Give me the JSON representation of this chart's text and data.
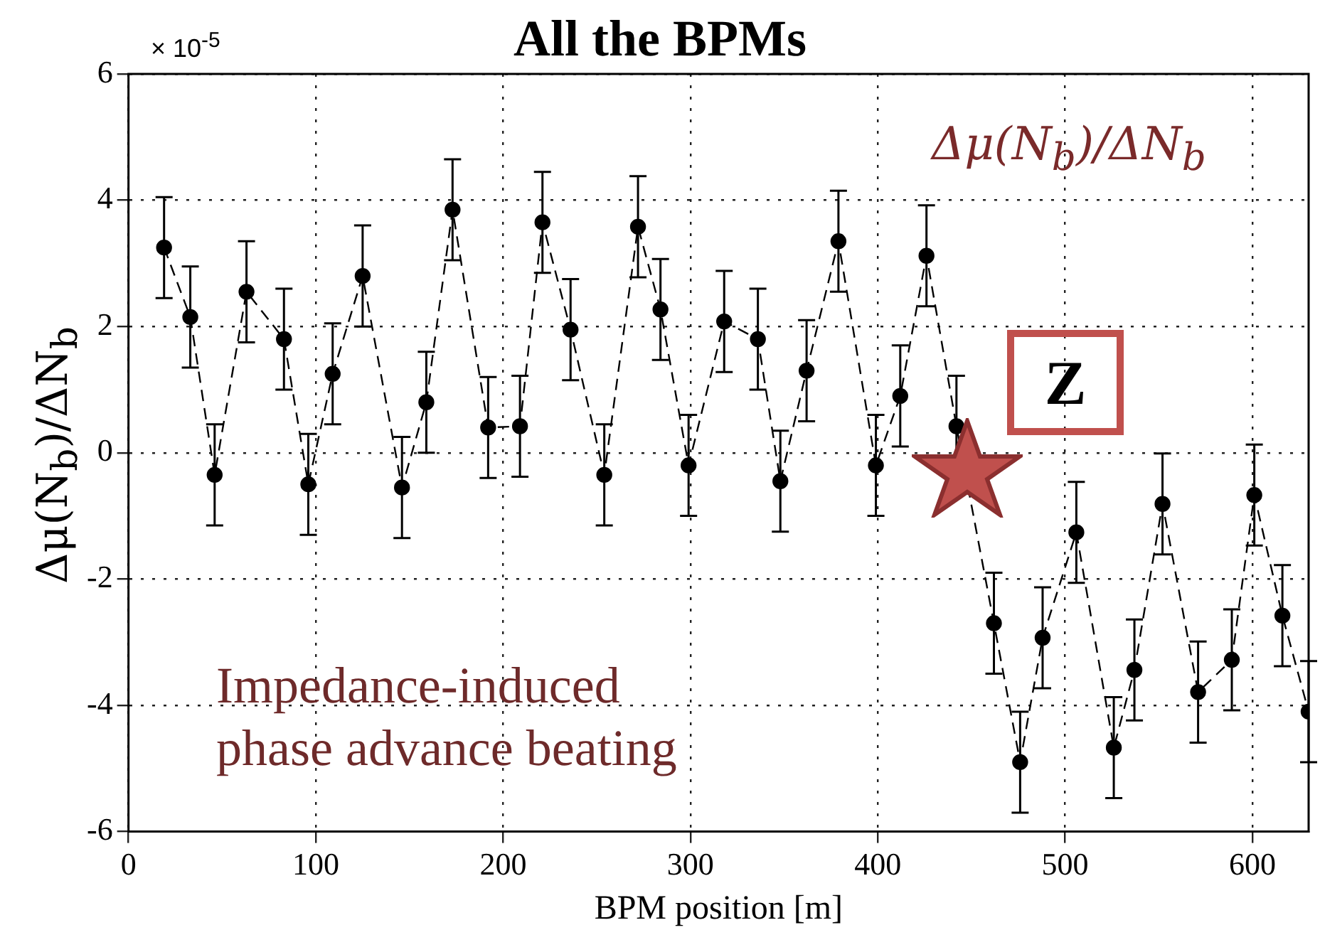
{
  "chart_data": {
    "type": "line",
    "title": "All the BPMs",
    "xlabel": "BPM position [m]",
    "ylabel": "Δμ(N$_{b}$)/ΔN$_{b}$",
    "annotations": [
      "× 10$^{-5}$",
      "Δμ(N$_{b}$)/ΔN$_{b}$",
      "Z",
      "Impedance-induced phase advance beating"
    ],
    "x": [
      19,
      33,
      46,
      63,
      83,
      96,
      109,
      125,
      146,
      159,
      173,
      192,
      209,
      221,
      236,
      254,
      272,
      284,
      299,
      318,
      336,
      348,
      362,
      379,
      399,
      412,
      426,
      442,
      462,
      476,
      488,
      506,
      526,
      537,
      552,
      571,
      589,
      601,
      616,
      630
    ],
    "series": [
      {
        "color": "#000000",
        "values": [
          3.25,
          2.15,
          -0.35,
          2.55,
          1.8,
          -0.5,
          1.25,
          2.8,
          -0.55,
          0.8,
          3.85,
          0.4,
          0.42,
          3.65,
          1.95,
          -0.35,
          3.58,
          2.27,
          -0.2,
          2.08,
          1.8,
          -0.45,
          1.3,
          3.35,
          -0.2,
          0.9,
          3.12,
          0.42,
          -2.7,
          -4.9,
          -2.93,
          -1.26,
          -4.67,
          -3.44,
          -0.81,
          -3.79,
          -3.28,
          -0.67,
          -2.58,
          -4.1
        ],
        "errors": [
          0.8,
          0.8,
          0.8,
          0.8,
          0.8,
          0.8,
          0.8,
          0.8,
          0.8,
          0.8,
          0.8,
          0.8,
          0.8,
          0.8,
          0.8,
          0.8,
          0.8,
          0.8,
          0.8,
          0.8,
          0.8,
          0.8,
          0.8,
          0.8,
          0.8,
          0.8,
          0.8,
          0.8,
          0.8,
          0.8,
          0.8,
          0.8,
          0.8,
          0.8,
          0.8,
          0.8,
          0.8,
          0.8,
          0.8,
          0.8
        ]
      }
    ],
    "xlim": [
      0,
      630
    ],
    "xticks": [
      0,
      100,
      200,
      300,
      400,
      500,
      600
    ],
    "ylim": [
      -6,
      6
    ],
    "yticks": [
      -6,
      -4,
      -2,
      0,
      2,
      4,
      6
    ],
    "grid": true,
    "legend": false,
    "marker": "circle",
    "line_style": "dashed"
  }
}
